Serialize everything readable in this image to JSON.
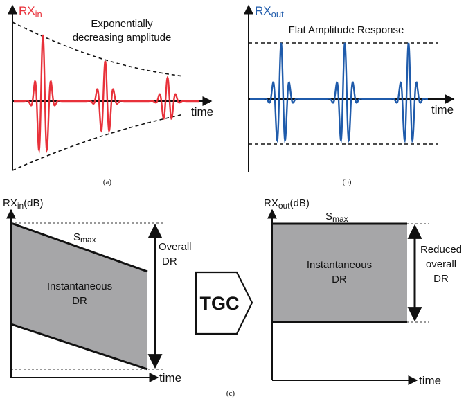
{
  "panel_a": {
    "axis_label_main": "RX",
    "axis_label_sub": "in",
    "annotation_line1": "Exponentially",
    "annotation_line2": "decreasing amplitude",
    "time_label": "time",
    "caption": "(a)",
    "signal_color": "#e8313a"
  },
  "panel_b": {
    "axis_label_main": "RX",
    "axis_label_sub": "out",
    "annotation": "Flat Amplitude Response",
    "time_label": "time",
    "caption": "(b)",
    "signal_color": "#1f5bab"
  },
  "panel_c": {
    "left": {
      "axis_label_main": "RX",
      "axis_label_sub": "in",
      "axis_label_suffix": "(dB)",
      "smax_main": "S",
      "smax_sub": "max",
      "region_line1": "Instantaneous",
      "region_line2": "DR",
      "dr_line1": "Overall",
      "dr_line2": "DR",
      "time_label": "time"
    },
    "tgc_label": "TGC",
    "right": {
      "axis_label_main": "RX",
      "axis_label_sub": "out",
      "axis_label_suffix": "(dB)",
      "smax_main": "S",
      "smax_sub": "max",
      "region_line1": "Instantaneous",
      "region_line2": "DR",
      "dr_line1": "Reduced",
      "dr_line2": "overall",
      "dr_line3": "DR",
      "time_label": "time"
    },
    "caption": "(c)",
    "fill_color": "#a6a6a8"
  }
}
